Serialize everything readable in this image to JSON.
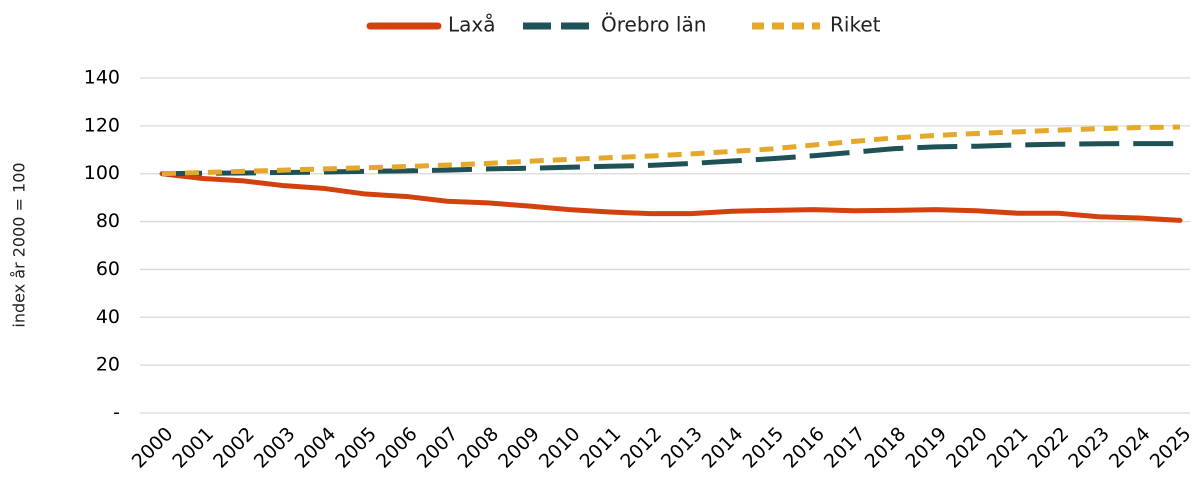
{
  "chart_data": {
    "type": "line",
    "y_label": "index år 2000 = 100",
    "categories": [
      "2000",
      "2001",
      "2002",
      "2003",
      "2004",
      "2005",
      "2006",
      "2007",
      "2008",
      "2009",
      "2010",
      "2011",
      "2012",
      "2013",
      "2014",
      "2015",
      "2016",
      "2017",
      "2018",
      "2019",
      "2020",
      "2021",
      "2022",
      "2023",
      "2024",
      "2025"
    ],
    "series": [
      {
        "name": "Laxå",
        "color": "#d3410f",
        "dash": "solid",
        "values": [
          100,
          98,
          97,
          95,
          93.8,
          91.5,
          90.5,
          88.5,
          87.8,
          86.5,
          85,
          84,
          83.3,
          83.3,
          84.3,
          84.7,
          85,
          84.5,
          84.7,
          85,
          84.5,
          83.5,
          83.5,
          82,
          81.5,
          80.5
        ]
      },
      {
        "name": "Örebro län",
        "color": "#1f5257",
        "dash": "long",
        "values": [
          100,
          100.2,
          100.3,
          100.5,
          100.7,
          101,
          101.2,
          101.5,
          102,
          102.3,
          102.7,
          103.1,
          103.5,
          104.3,
          105.3,
          106.3,
          107.5,
          109,
          110.5,
          111.2,
          111.5,
          112,
          112.3,
          112.5,
          112.6,
          112.6
        ]
      },
      {
        "name": "Riket",
        "color": "#e5a82a",
        "dash": "short",
        "values": [
          100,
          100.5,
          101,
          101.5,
          102,
          102.5,
          103,
          103.6,
          104.3,
          105.2,
          106,
          106.7,
          107.4,
          108.3,
          109.3,
          110.4,
          112,
          113.5,
          115,
          116,
          116.8,
          117.5,
          118.2,
          118.8,
          119.3,
          119.5
        ]
      }
    ],
    "ylim": [
      0,
      140
    ],
    "yticks": [
      {
        "value": 0,
        "label": "-"
      },
      20,
      40,
      60,
      80,
      100,
      120,
      140
    ],
    "grid": true,
    "legend": "top"
  }
}
